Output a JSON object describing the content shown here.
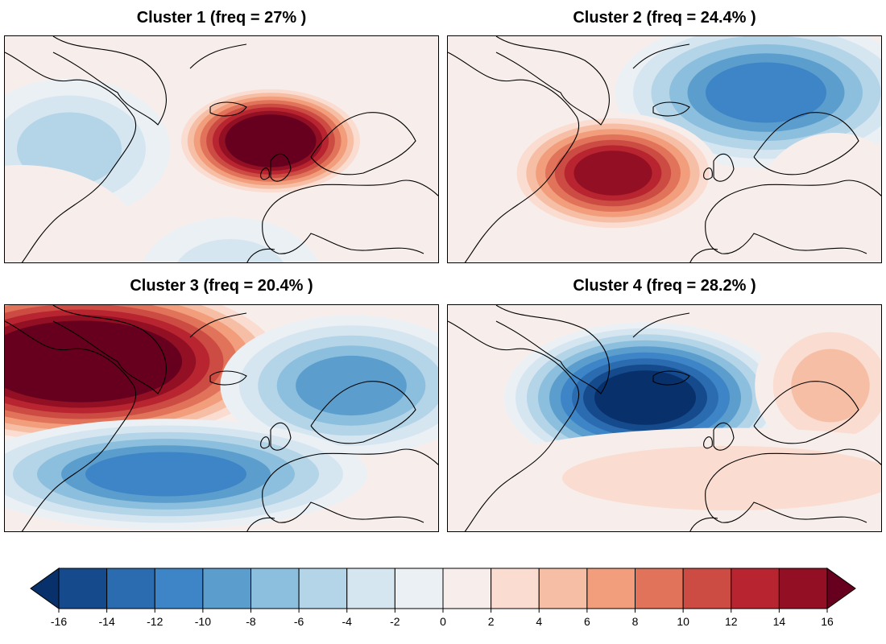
{
  "panels": [
    {
      "title": "Cluster 1 (freq = 27% )",
      "pattern": "cluster1"
    },
    {
      "title": "Cluster 2 (freq = 24.4% )",
      "pattern": "cluster2"
    },
    {
      "title": "Cluster 3 (freq = 20.4% )",
      "pattern": "cluster3"
    },
    {
      "title": "Cluster 4 (freq = 28.2% )",
      "pattern": "cluster4"
    }
  ],
  "colorbar": {
    "ticks": [
      "-16",
      "-14",
      "-12",
      "-10",
      "-8",
      "-6",
      "-4",
      "-2",
      "0",
      "2",
      "4",
      "6",
      "8",
      "10",
      "12",
      "14",
      "16"
    ],
    "colors": [
      "#08306b",
      "#154a8c",
      "#2b6cb0",
      "#3d85c6",
      "#5b9ecd",
      "#8cbfdd",
      "#b4d4e8",
      "#d6e6f1",
      "#ebf0f5",
      "#f7eeeb",
      "#fadcd0",
      "#f6bfa5",
      "#f29e7c",
      "#e07359",
      "#cc4c43",
      "#b8242f",
      "#930f23",
      "#67001f"
    ],
    "min_color": "#08306b",
    "max_color": "#67001f"
  }
}
